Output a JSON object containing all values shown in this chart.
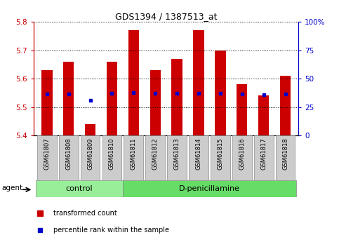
{
  "title": "GDS1394 / 1387513_at",
  "samples": [
    "GSM61807",
    "GSM61808",
    "GSM61809",
    "GSM61810",
    "GSM61811",
    "GSM61812",
    "GSM61813",
    "GSM61814",
    "GSM61815",
    "GSM61816",
    "GSM61817",
    "GSM61818"
  ],
  "red_values": [
    5.63,
    5.66,
    5.44,
    5.66,
    5.77,
    5.63,
    5.67,
    5.77,
    5.7,
    5.58,
    5.54,
    5.61
  ],
  "blue_values": [
    5.545,
    5.545,
    5.525,
    5.548,
    5.551,
    5.548,
    5.548,
    5.548,
    5.548,
    5.545,
    5.543,
    5.545
  ],
  "ylim_left": [
    5.4,
    5.8
  ],
  "ylim_right": [
    0,
    100
  ],
  "yticks_left": [
    5.4,
    5.5,
    5.6,
    5.7,
    5.8
  ],
  "yticks_right": [
    0,
    25,
    50,
    75,
    100
  ],
  "ytick_labels_right": [
    "0",
    "25",
    "50",
    "75",
    "100%"
  ],
  "bar_bottom": 5.4,
  "control_samples": 4,
  "control_label": "control",
  "treatment_label": "D-penicillamine",
  "agent_label": "agent",
  "legend_red": "transformed count",
  "legend_blue": "percentile rank within the sample",
  "bar_color_red": "#cc0000",
  "bar_color_blue": "#0000cc",
  "bg_plot": "#ffffff",
  "bg_xticklabel": "#cccccc",
  "bg_control": "#99ee99",
  "bg_treatment": "#66dd66",
  "left_axis_color": "#cc0000",
  "right_axis_color": "#0000cc",
  "bar_width": 0.5
}
